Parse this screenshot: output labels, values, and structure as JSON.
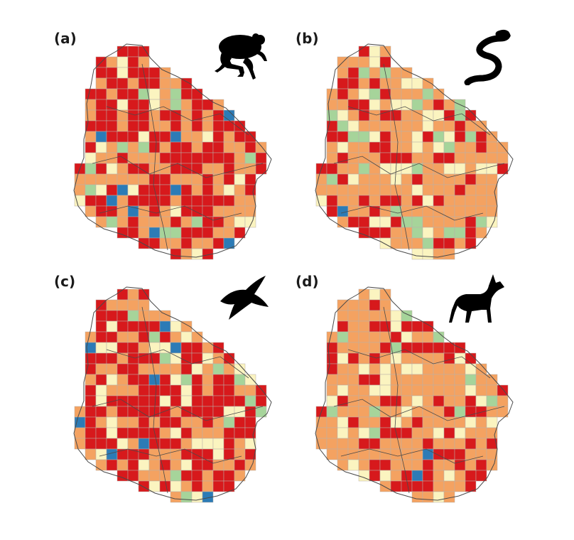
{
  "panels": [
    {
      "id": "a",
      "label": "(a)",
      "silhouette": "frog-icon",
      "seed": 11
    },
    {
      "id": "b",
      "label": "(b)",
      "silhouette": "snake-icon",
      "seed": 29
    },
    {
      "id": "c",
      "label": "(c)",
      "silhouette": "bird-icon",
      "seed": 47
    },
    {
      "id": "d",
      "label": "(d)",
      "silhouette": "canid-icon",
      "seed": 83
    }
  ],
  "palette": {
    "very_high": "#d7191c",
    "high": "#f4a261",
    "medium": "#f3de8a",
    "pale": "#fbf4c0",
    "low": "#a6d49a",
    "very_low": "#2c7bb6",
    "grid_line": "#b9b0a8",
    "border": "#4a4a4a"
  }
}
